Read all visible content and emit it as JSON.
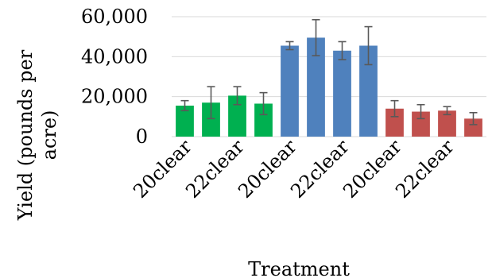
{
  "chart_data": {
    "type": "bar",
    "xlabel": "Treatment",
    "ylabel": "Yield (pounds per acre)",
    "ylim": [
      0,
      60000
    ],
    "yticks": [
      0,
      20000,
      40000,
      60000
    ],
    "ytick_labels": [
      "0",
      "20,000",
      "40,000",
      "60,000"
    ],
    "grid": true,
    "legend": "none",
    "visible_category_labels": [
      "20clear",
      "22clear",
      "20clear",
      "22clear",
      "20clear",
      "22clear"
    ],
    "bars": [
      {
        "value": 15500,
        "error": 2500,
        "color": "#00b050"
      },
      {
        "value": 17000,
        "error": 8000,
        "color": "#00b050"
      },
      {
        "value": 20500,
        "error": 4500,
        "color": "#00b050"
      },
      {
        "value": 16500,
        "error": 5500,
        "color": "#00b050"
      },
      {
        "value": 45500,
        "error": 2000,
        "color": "#4f81bd"
      },
      {
        "value": 49500,
        "error": 9000,
        "color": "#4f81bd"
      },
      {
        "value": 43000,
        "error": 4500,
        "color": "#4f81bd"
      },
      {
        "value": 45500,
        "error": 9500,
        "color": "#4f81bd"
      },
      {
        "value": 14000,
        "error": 4000,
        "color": "#c0504d"
      },
      {
        "value": 12500,
        "error": 3500,
        "color": "#c0504d"
      },
      {
        "value": 13000,
        "error": 2000,
        "color": "#c0504d"
      },
      {
        "value": 9000,
        "error": 3000,
        "color": "#c0504d"
      }
    ]
  }
}
